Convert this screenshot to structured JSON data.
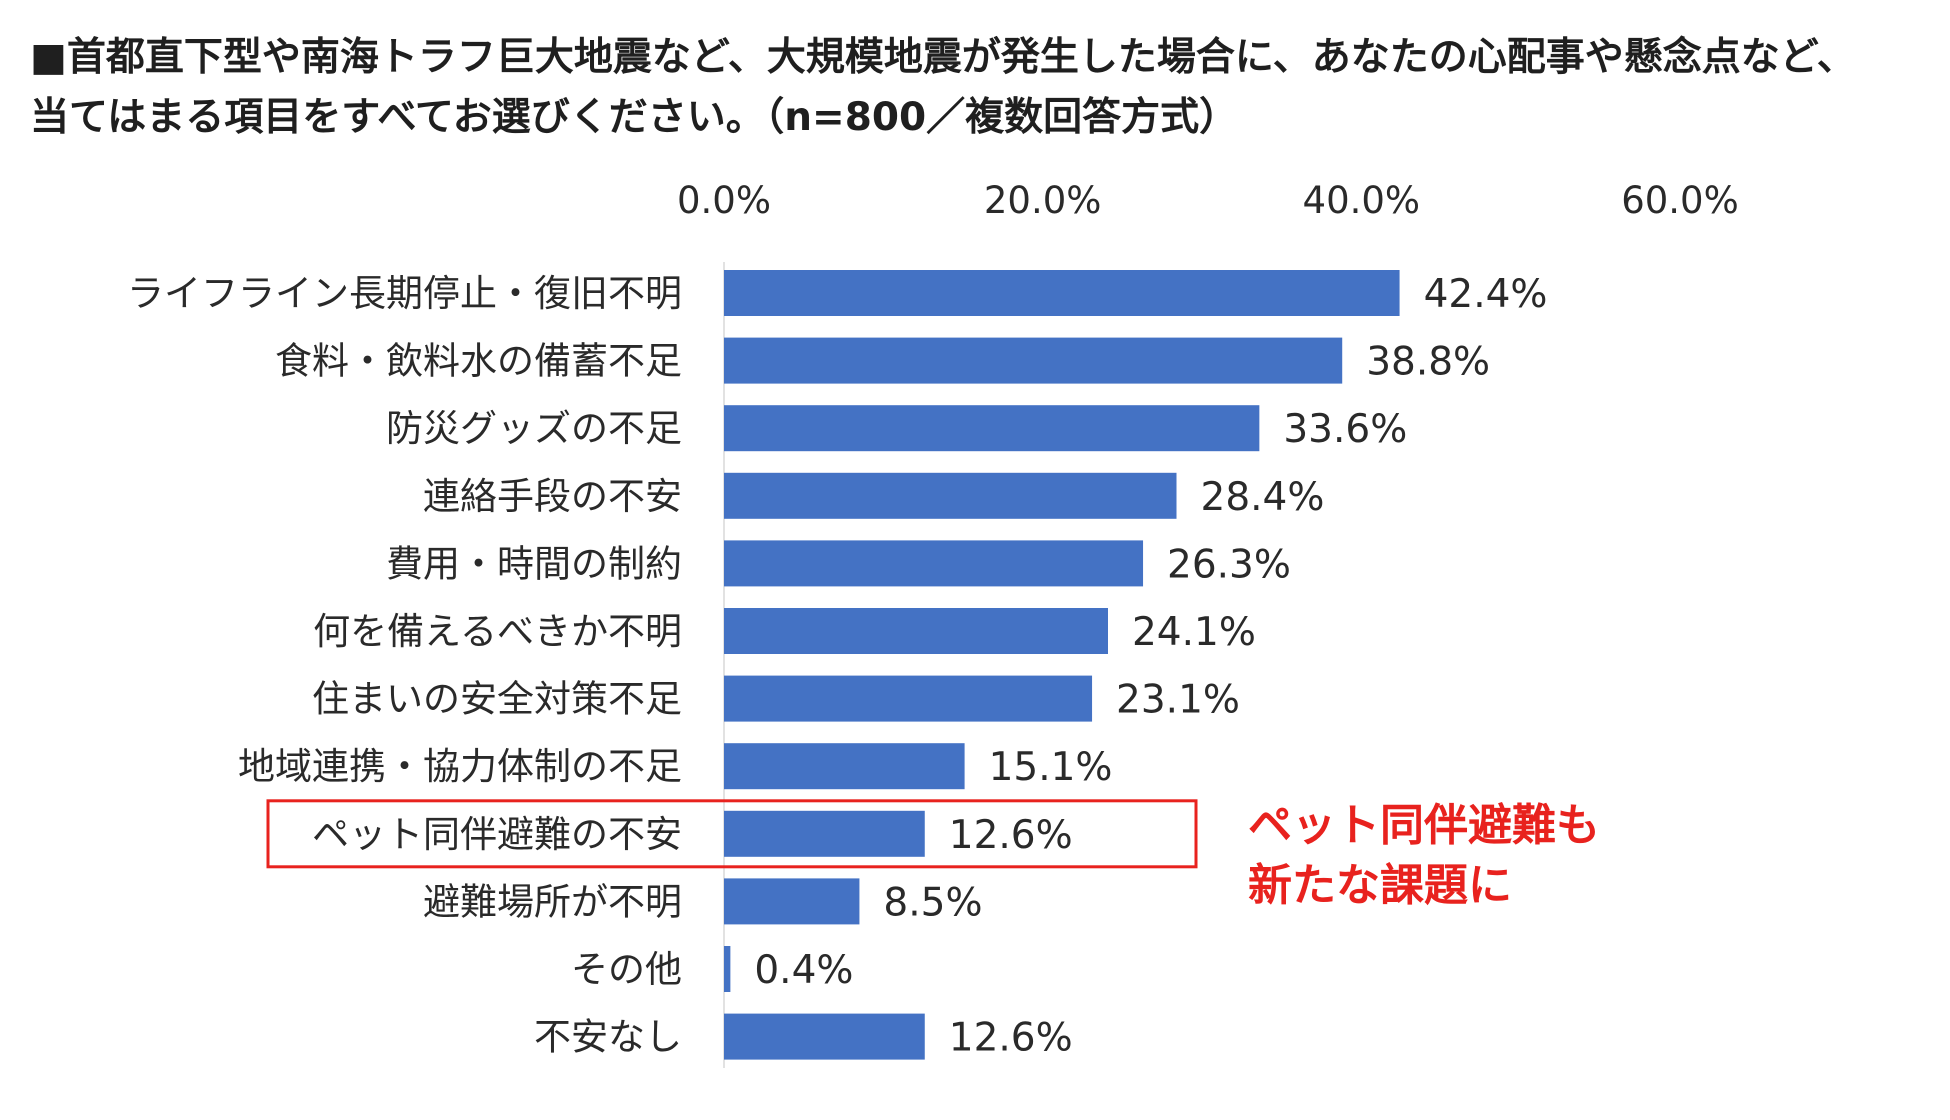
{
  "title_lines": [
    "■首都直下型や南海トラフ巨大地震など、大規模地震が発生した場合に、あなたの心配事や懸念点など、",
    "当てはまる項目をすべてお選びください。（n=800／複数回答方式）"
  ],
  "annotation_lines": [
    "ペット同伴避難も",
    "新たな課題に"
  ],
  "colors": {
    "bar": "#4472C4",
    "highlight": "#E8221E"
  },
  "chart_data": {
    "type": "bar",
    "orientation": "horizontal",
    "title": "■首都直下型や南海トラフ巨大地震など、大規模地震が発生した場合に、あなたの心配事や懸念点など、当てはまる項目をすべてお選びください。（n=800／複数回答方式）",
    "xlim": [
      0,
      60
    ],
    "ticks": [
      "0.0%",
      "20.0%",
      "40.0%",
      "60.0%"
    ],
    "tick_values": [
      0,
      20,
      40,
      60
    ],
    "tick_position": "top",
    "grid": false,
    "categories": [
      "ライフライン長期停止・復旧不明",
      "食料・飲料水の備蓄不足",
      "防災グッズの不足",
      "連絡手段の不安",
      "費用・時間の制約",
      "何を備えるべきか不明",
      "住まいの安全対策不足",
      "地域連携・協力体制の不足",
      "ペット同伴避難の不安",
      "避難場所が不明",
      "その他",
      "不安なし"
    ],
    "values": [
      42.4,
      38.8,
      33.6,
      28.4,
      26.3,
      24.1,
      23.1,
      15.1,
      12.6,
      8.5,
      0.4,
      12.6
    ],
    "value_labels": [
      "42.4%",
      "38.8%",
      "33.6%",
      "28.4%",
      "26.3%",
      "24.1%",
      "23.1%",
      "15.1%",
      "12.6%",
      "8.5%",
      "0.4%",
      "12.6%"
    ],
    "highlighted_category": "ペット同伴避難の不安"
  }
}
